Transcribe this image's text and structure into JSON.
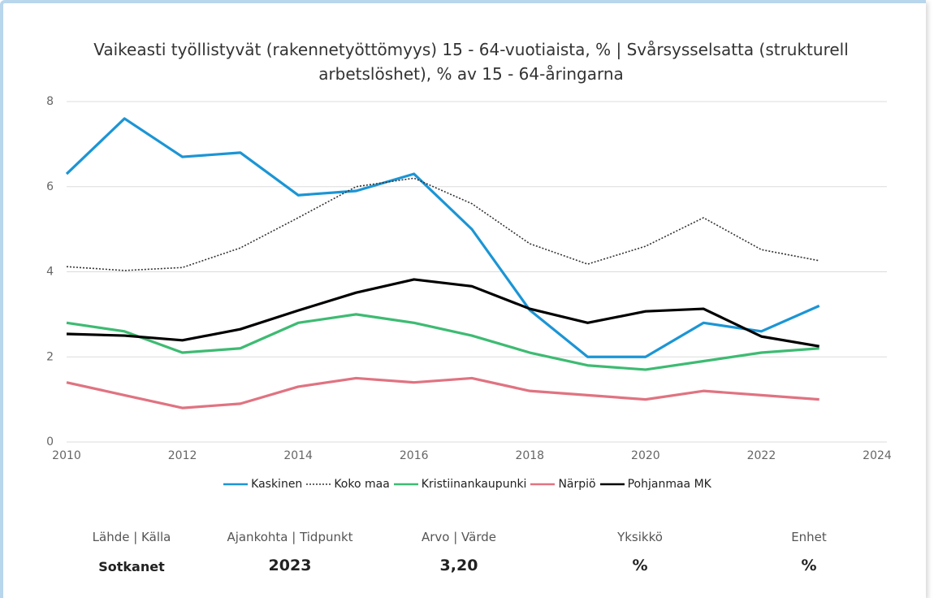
{
  "chart_data": {
    "type": "line",
    "title": "Vaikeasti työllistyvät (rakennetyöttömyys) 15 - 64-vuotiaista, % | Svårsysselsatta (strukturell arbetslöshet), % av 15 - 64-åringarna",
    "x": [
      2010,
      2011,
      2012,
      2013,
      2014,
      2015,
      2016,
      2017,
      2018,
      2019,
      2020,
      2021,
      2022,
      2023
    ],
    "xlim": [
      2010,
      2024
    ],
    "xticks": [
      2010,
      2012,
      2014,
      2016,
      2018,
      2020,
      2022,
      2024
    ],
    "ylim": [
      0,
      8
    ],
    "yticks": [
      0,
      2,
      4,
      6,
      8
    ],
    "grid": true,
    "legend": "bottom",
    "series": [
      {
        "name": "Kaskinen",
        "color": "#1b95d5",
        "style": "solid",
        "values": [
          6.3,
          7.6,
          6.7,
          6.8,
          5.8,
          5.9,
          6.3,
          5.0,
          3.1,
          2.0,
          2.0,
          2.8,
          2.6,
          3.2
        ]
      },
      {
        "name": "Koko maa",
        "color": "#333333",
        "style": "dotted",
        "values": [
          4.12,
          4.03,
          4.1,
          4.56,
          5.27,
          6.0,
          6.2,
          5.6,
          4.66,
          4.18,
          4.6,
          5.27,
          4.52,
          4.26
        ]
      },
      {
        "name": "Kristiinankaupunki",
        "color": "#3dbb72",
        "style": "solid",
        "values": [
          2.8,
          2.6,
          2.1,
          2.2,
          2.8,
          3.0,
          2.8,
          2.5,
          2.1,
          1.8,
          1.7,
          1.9,
          2.1,
          2.2
        ]
      },
      {
        "name": "Närpiö",
        "color": "#e07381",
        "style": "solid",
        "values": [
          1.4,
          1.1,
          0.8,
          0.9,
          1.3,
          1.5,
          1.4,
          1.5,
          1.2,
          1.1,
          1.0,
          1.2,
          1.1,
          1.0
        ]
      },
      {
        "name": "Pohjanmaa MK",
        "color": "#000000",
        "style": "solid",
        "values": [
          2.54,
          2.5,
          2.39,
          2.65,
          3.09,
          3.51,
          3.82,
          3.66,
          3.13,
          2.8,
          3.07,
          3.13,
          2.48,
          2.25
        ]
      }
    ]
  },
  "summary": {
    "labels": [
      "Lähde | Källa",
      "Ajankohta | Tidpunkt",
      "Arvo | Värde",
      "Yksikkö",
      "Enhet"
    ],
    "values": [
      "Sotkanet",
      "2023",
      "3,20",
      "%",
      "%"
    ]
  }
}
